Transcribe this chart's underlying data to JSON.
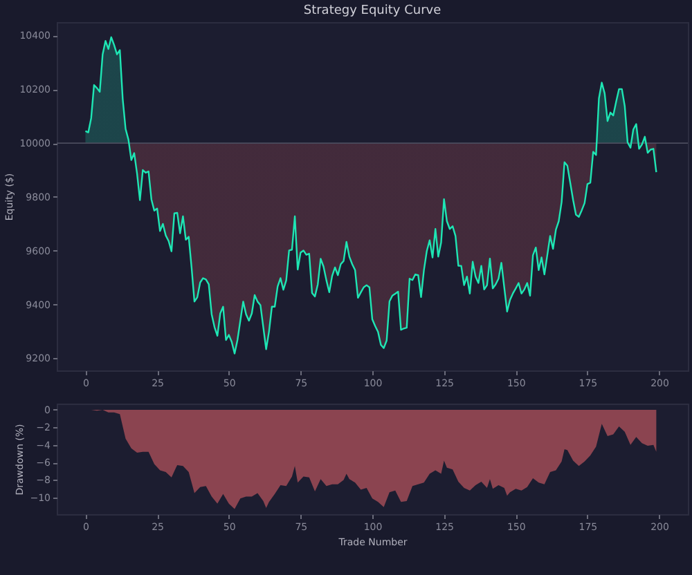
{
  "chart_data": [
    {
      "type": "line",
      "title": "Strategy Equity Curve",
      "ylabel": "Equity ($)",
      "color": "#1ee6b4",
      "x": [
        0,
        1,
        2,
        3,
        4,
        5,
        6,
        7,
        8,
        9,
        10,
        11,
        12,
        13,
        14,
        15,
        16,
        17,
        18,
        19,
        20,
        21,
        22,
        23,
        24,
        25,
        26,
        27,
        28,
        29,
        30,
        31,
        32,
        33,
        34,
        35,
        36,
        37,
        38,
        39,
        40,
        41,
        42,
        43,
        44,
        45,
        46,
        47,
        48,
        49,
        50,
        51,
        52,
        53,
        54,
        55,
        56,
        57,
        58,
        59,
        60,
        61,
        62,
        63,
        64,
        65,
        66,
        67,
        68,
        69,
        70,
        71,
        72,
        73,
        74,
        75,
        76,
        77,
        78,
        79,
        80,
        81,
        82,
        83,
        84,
        85,
        86,
        87,
        88,
        89,
        90,
        91,
        92,
        93,
        94,
        95,
        96,
        97,
        98,
        99,
        100,
        101,
        102,
        103,
        104,
        105,
        106,
        107,
        108,
        109,
        110,
        111,
        112,
        113,
        114,
        115,
        116,
        117,
        118,
        119,
        120,
        121,
        122,
        123,
        124,
        125,
        126,
        127,
        128,
        129,
        130,
        131,
        132,
        133,
        134,
        135,
        136,
        137,
        138,
        139,
        140,
        141,
        142,
        143,
        144,
        145,
        146,
        147,
        148,
        149,
        150,
        151,
        152,
        153,
        154,
        155,
        156,
        157,
        158,
        159,
        160,
        161,
        162,
        163,
        164,
        165,
        166,
        167,
        168,
        169,
        170,
        171,
        172,
        173,
        174,
        175,
        176,
        177,
        178,
        179,
        180,
        181,
        182,
        183,
        184,
        185,
        186,
        187,
        188,
        189,
        190,
        191,
        192,
        193,
        194,
        195,
        196,
        197,
        198,
        199
      ],
      "values": [
        10045,
        10040,
        10093,
        10216,
        10205,
        10191,
        10330,
        10380,
        10350,
        10394,
        10365,
        10330,
        10346,
        10164,
        10053,
        10013,
        9937,
        9963,
        9887,
        9788,
        9900,
        9890,
        9895,
        9791,
        9749,
        9757,
        9673,
        9700,
        9657,
        9636,
        9598,
        9739,
        9741,
        9665,
        9728,
        9641,
        9652,
        9538,
        9411,
        9427,
        9482,
        9498,
        9493,
        9475,
        9364,
        9316,
        9284,
        9367,
        9392,
        9268,
        9287,
        9261,
        9218,
        9268,
        9340,
        9411,
        9364,
        9340,
        9367,
        9435,
        9411,
        9398,
        9316,
        9234,
        9300,
        9392,
        9392,
        9467,
        9498,
        9455,
        9490,
        9601,
        9604,
        9728,
        9530,
        9593,
        9601,
        9585,
        9589,
        9443,
        9430,
        9475,
        9570,
        9541,
        9490,
        9446,
        9506,
        9538,
        9509,
        9550,
        9562,
        9633,
        9578,
        9550,
        9528,
        9425,
        9445,
        9464,
        9472,
        9464,
        9345,
        9320,
        9298,
        9250,
        9238,
        9266,
        9412,
        9433,
        9440,
        9448,
        9306,
        9311,
        9314,
        9496,
        9491,
        9512,
        9509,
        9428,
        9528,
        9599,
        9639,
        9575,
        9681,
        9578,
        9631,
        9792,
        9710,
        9681,
        9691,
        9655,
        9544,
        9544,
        9472,
        9504,
        9441,
        9559,
        9504,
        9480,
        9544,
        9456,
        9472,
        9571,
        9460,
        9475,
        9496,
        9555,
        9464,
        9374,
        9417,
        9441,
        9460,
        9480,
        9441,
        9456,
        9480,
        9433,
        9583,
        9612,
        9528,
        9575,
        9512,
        9583,
        9655,
        9607,
        9678,
        9710,
        9781,
        9929,
        9916,
        9853,
        9789,
        9734,
        9726,
        9750,
        9777,
        9848,
        9853,
        9968,
        9956,
        10166,
        10225,
        10185,
        10082,
        10114,
        10103,
        10154,
        10201,
        10201,
        10138,
        10003,
        9983,
        10051,
        10071,
        9979,
        9995,
        10024,
        9964,
        9976,
        9979,
        9892
      ],
      "xlim": [
        -10,
        210
      ],
      "xticks": [
        0,
        25,
        50,
        75,
        100,
        125,
        150,
        175,
        200
      ],
      "ylim": [
        9155,
        10450
      ],
      "yticks": [
        9200,
        9400,
        9600,
        9800,
        10000,
        10200,
        10400
      ],
      "ref_lines": [
        {
          "axis": "y",
          "value": 10000,
          "color": "#4b4c5e"
        }
      ]
    },
    {
      "type": "area",
      "xlabel": "Trade Number",
      "ylabel": "Drawdown (%)",
      "color": "#8b4450",
      "x": [
        0,
        2,
        4,
        6,
        8,
        10,
        12,
        14,
        16,
        18,
        20,
        22,
        24,
        26,
        28,
        30,
        32,
        34,
        36,
        38,
        40,
        42,
        44,
        46,
        48,
        50,
        52,
        54,
        56,
        58,
        60,
        62,
        63,
        64,
        66,
        68,
        70,
        72,
        73,
        74,
        76,
        78,
        80,
        82,
        84,
        86,
        88,
        90,
        91,
        92,
        94,
        96,
        98,
        100,
        102,
        104,
        106,
        108,
        110,
        112,
        114,
        116,
        118,
        120,
        122,
        124,
        125,
        126,
        128,
        130,
        132,
        134,
        136,
        138,
        140,
        141,
        142,
        144,
        146,
        147,
        148,
        150,
        152,
        154,
        156,
        158,
        160,
        162,
        164,
        166,
        167,
        168,
        170,
        172,
        174,
        176,
        178,
        180,
        182,
        184,
        186,
        188,
        190,
        192,
        194,
        196,
        198,
        199
      ],
      "values": [
        0,
        0,
        -0.1,
        0,
        -0.3,
        -0.3,
        -0.5,
        -3.3,
        -4.4,
        -4.9,
        -4.8,
        -4.8,
        -6.2,
        -6.9,
        -7.1,
        -7.7,
        -6.3,
        -6.4,
        -7.1,
        -9.5,
        -8.8,
        -8.7,
        -9.9,
        -10.7,
        -9.6,
        -10.7,
        -11.3,
        -10.1,
        -9.9,
        -9.9,
        -9.5,
        -10.4,
        -11.2,
        -10.5,
        -9.6,
        -8.6,
        -8.7,
        -7.6,
        -6.4,
        -8.3,
        -7.6,
        -7.7,
        -9.3,
        -7.9,
        -8.7,
        -8.5,
        -8.5,
        -8.0,
        -7.3,
        -7.9,
        -8.3,
        -9.1,
        -8.9,
        -10.1,
        -10.5,
        -11.1,
        -9.4,
        -9.2,
        -10.5,
        -10.4,
        -8.7,
        -8.5,
        -8.3,
        -7.3,
        -6.9,
        -7.3,
        -5.8,
        -6.6,
        -6.8,
        -8.2,
        -8.9,
        -9.2,
        -8.6,
        -8.2,
        -8.9,
        -7.9,
        -9.0,
        -8.6,
        -8.9,
        -9.8,
        -9.4,
        -9.0,
        -9.2,
        -8.8,
        -7.8,
        -8.3,
        -8.5,
        -7.1,
        -6.9,
        -5.9,
        -4.5,
        -4.6,
        -5.8,
        -6.4,
        -5.9,
        -5.2,
        -4.2,
        -1.6,
        -3.0,
        -2.8,
        -1.9,
        -2.5,
        -4.0,
        -3.1,
        -3.8,
        -4.1,
        -4.0,
        -4.8
      ],
      "xlim": [
        -10,
        210
      ],
      "xticks": [
        0,
        25,
        50,
        75,
        100,
        125,
        150,
        175,
        200
      ],
      "ylim": [
        -11.9,
        0.7
      ],
      "yticks": [
        -10,
        -8,
        -6,
        -4,
        -2,
        0
      ]
    }
  ]
}
